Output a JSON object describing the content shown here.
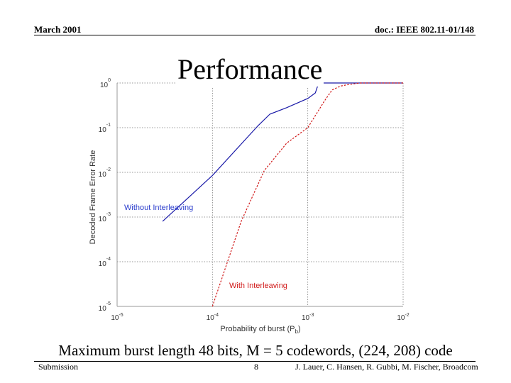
{
  "header": {
    "left": "March 2001",
    "right": "doc.: IEEE 802.11-01/148"
  },
  "title": "Performance",
  "subtitle": "Maximum burst length 48 bits, M = 5 codewords, (224, 208) code",
  "footer": {
    "left": "Submission",
    "page": "8",
    "authors": "J. Lauer, C. Hansen, R. Gubbi, M. Fischer, Broadcom"
  },
  "chart_data": {
    "type": "line",
    "title": "",
    "xlabel": "Probability of burst (Pb)",
    "ylabel": "Decoded Frame Error Rate",
    "xscale": "log",
    "yscale": "log",
    "xlim": [
      1e-05,
      0.01
    ],
    "ylim": [
      1e-05,
      1
    ],
    "grid": true,
    "x_ticks": [
      {
        "value": 1e-05,
        "base": "10",
        "exp": "-5"
      },
      {
        "value": 0.0001,
        "base": "10",
        "exp": "-4"
      },
      {
        "value": 0.001,
        "base": "10",
        "exp": "-3"
      },
      {
        "value": 0.01,
        "base": "10",
        "exp": "-2"
      }
    ],
    "y_ticks": [
      {
        "value": 1,
        "base": "10",
        "exp": "0"
      },
      {
        "value": 0.1,
        "base": "10",
        "exp": "-1"
      },
      {
        "value": 0.01,
        "base": "10",
        "exp": "-2"
      },
      {
        "value": 0.001,
        "base": "10",
        "exp": "-3"
      },
      {
        "value": 0.0001,
        "base": "10",
        "exp": "-4"
      },
      {
        "value": 1e-05,
        "base": "10",
        "exp": "-5"
      }
    ],
    "series": [
      {
        "name": "Without Interleaving",
        "color": "#1a1aa8",
        "dash": "solid",
        "x": [
          3e-05,
          0.0001,
          0.0003,
          0.0004,
          0.0006,
          0.001,
          0.0012,
          0.0013,
          0.01
        ],
        "y": [
          0.0008,
          0.0085,
          0.11,
          0.2,
          0.28,
          0.45,
          0.6,
          1.0,
          1.0
        ]
      },
      {
        "name": "With Interleaving",
        "color": "#d01818",
        "dash": "dashed",
        "x": [
          0.0001,
          0.0002,
          0.00035,
          0.0006,
          0.001,
          0.0015,
          0.0018,
          0.0022,
          0.0025,
          0.0035,
          0.01
        ],
        "y": [
          1e-05,
          0.0008,
          0.011,
          0.045,
          0.1,
          0.4,
          0.7,
          0.85,
          0.9,
          1.0,
          1.0
        ]
      }
    ],
    "annotations": [
      "Without Interleaving",
      "With Interleaving"
    ]
  }
}
